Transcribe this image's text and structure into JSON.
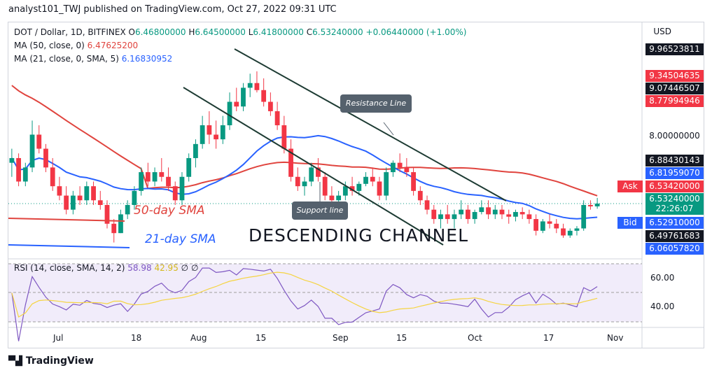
{
  "header": "analyst101_TWJ published on TradingView.com, Oct 27, 2022 09:31 UTC",
  "symbol_line": {
    "symbol": "DOT / Dollar, 1D, BITFINEX",
    "o_label": "O",
    "o": "6.46800000",
    "h_label": "H",
    "h": "6.64500000",
    "l_label": "L",
    "l": "6.41800000",
    "c_label": "C",
    "c": "6.53240000",
    "change": "+0.06440000 (+1.00%)"
  },
  "ma50": {
    "label": "MA (50, close, 0)",
    "value": "6.47625200"
  },
  "ma21": {
    "label": "MA (21, close, 0, SMA, 5)",
    "value": "6.16830952"
  },
  "rsi": {
    "label": "RSI (14, close, SMA, 14, 2)",
    "value1": "58.98",
    "value2": "42.95",
    "sym1": "∅",
    "sym2": "∅"
  },
  "currency": "USD",
  "price_labels": [
    {
      "text": "9.96523811",
      "bg": "#131722"
    },
    {
      "text": "9.34504635",
      "bg": "#f23645"
    },
    {
      "text": "9.07446507",
      "bg": "#131722"
    },
    {
      "text": "8.77994946",
      "bg": "#f23645"
    },
    {
      "text": "8.00000000",
      "bg": ""
    },
    {
      "text": "6.88430143",
      "bg": "#131722"
    },
    {
      "text": "6.81959070",
      "bg": "#2962ff"
    },
    {
      "text": "6.53420000",
      "bg": "#f23645"
    },
    {
      "text": "6.53240000",
      "bg": "#089981"
    },
    {
      "text": "22:26:07",
      "bg": "#089981"
    },
    {
      "text": "6.52910000",
      "bg": "#2962ff"
    },
    {
      "text": "6.49761683",
      "bg": "#131722"
    },
    {
      "text": "6.06057820",
      "bg": "#2962ff"
    }
  ],
  "ask_label": "Ask",
  "bid_label": "Bid",
  "rsi_axis": [
    "60.00",
    "40.00"
  ],
  "x_axis": [
    "Jul",
    "18",
    "Aug",
    "15",
    "Sep",
    "15",
    "Oct",
    "17",
    "Nov"
  ],
  "annotations": {
    "sma50": "50-day SMA",
    "sma21": "21-day SMA",
    "channel": "DESCENDING  CHANNEL",
    "resistance": "Resistance Line",
    "support": "Support line"
  },
  "colors": {
    "up": "#089981",
    "down": "#f23645",
    "ma50": "#e0443e",
    "ma21": "#2962ff",
    "rsi": "#7e57c2",
    "rsi_ma": "#f5d442"
  },
  "footer": "TradingView",
  "chart_data": {
    "type": "candlestick",
    "x": "daily, ~Jun 29 – Oct 27 2022",
    "candles_ohlc": [
      [
        7.4,
        7.7,
        7.1,
        7.5
      ],
      [
        7.5,
        7.6,
        6.9,
        7.0
      ],
      [
        7.0,
        7.4,
        6.9,
        7.3
      ],
      [
        7.3,
        8.3,
        7.2,
        8.0
      ],
      [
        8.0,
        8.2,
        7.6,
        7.7
      ],
      [
        7.7,
        7.8,
        7.2,
        7.3
      ],
      [
        7.3,
        7.5,
        6.8,
        6.9
      ],
      [
        6.9,
        7.1,
        6.6,
        6.7
      ],
      [
        6.7,
        6.9,
        6.3,
        6.4
      ],
      [
        6.4,
        6.8,
        6.3,
        6.7
      ],
      [
        6.7,
        6.9,
        6.5,
        6.6
      ],
      [
        6.6,
        7.0,
        6.5,
        6.9
      ],
      [
        6.9,
        7.0,
        6.5,
        6.6
      ],
      [
        6.6,
        6.8,
        6.4,
        6.5
      ],
      [
        6.5,
        6.6,
        6.0,
        6.1
      ],
      [
        6.1,
        6.2,
        5.7,
        5.9
      ],
      [
        5.9,
        6.4,
        5.9,
        6.3
      ],
      [
        6.3,
        6.6,
        6.2,
        6.5
      ],
      [
        6.5,
        6.9,
        6.4,
        6.8
      ],
      [
        6.8,
        7.3,
        6.7,
        7.2
      ],
      [
        7.2,
        7.4,
        6.9,
        7.0
      ],
      [
        7.0,
        7.3,
        6.9,
        7.2
      ],
      [
        7.2,
        7.5,
        7.0,
        7.1
      ],
      [
        7.1,
        7.3,
        6.8,
        6.9
      ],
      [
        6.9,
        7.0,
        6.5,
        6.6
      ],
      [
        6.6,
        7.2,
        6.5,
        7.1
      ],
      [
        7.1,
        7.6,
        7.0,
        7.5
      ],
      [
        7.5,
        7.9,
        7.3,
        7.8
      ],
      [
        7.8,
        8.4,
        7.7,
        8.2
      ],
      [
        8.2,
        8.5,
        7.8,
        8.0
      ],
      [
        8.0,
        8.3,
        7.7,
        7.9
      ],
      [
        7.9,
        8.4,
        7.8,
        8.2
      ],
      [
        8.2,
        8.9,
        8.1,
        8.7
      ],
      [
        8.7,
        9.0,
        8.5,
        8.6
      ],
      [
        8.6,
        9.1,
        8.5,
        9.0
      ],
      [
        9.0,
        9.3,
        8.8,
        9.1
      ],
      [
        9.1,
        9.35,
        8.9,
        8.95
      ],
      [
        8.95,
        9.2,
        8.6,
        8.7
      ],
      [
        8.7,
        8.9,
        8.4,
        8.5
      ],
      [
        8.5,
        8.7,
        8.1,
        8.2
      ],
      [
        8.2,
        8.4,
        7.6,
        7.7
      ],
      [
        7.7,
        7.9,
        7.0,
        7.1
      ],
      [
        7.1,
        7.3,
        6.8,
        6.9
      ],
      [
        6.9,
        7.1,
        6.7,
        7.0
      ],
      [
        7.0,
        7.4,
        6.9,
        7.3
      ],
      [
        7.3,
        7.5,
        7.0,
        7.1
      ],
      [
        7.1,
        7.2,
        6.6,
        6.7
      ],
      [
        6.7,
        6.9,
        6.5,
        6.6
      ],
      [
        6.6,
        6.8,
        6.4,
        6.7
      ],
      [
        6.7,
        7.0,
        6.6,
        6.9
      ],
      [
        6.9,
        7.1,
        6.7,
        6.8
      ],
      [
        6.8,
        7.0,
        6.7,
        6.95
      ],
      [
        6.95,
        7.2,
        6.9,
        7.1
      ],
      [
        7.1,
        7.3,
        6.9,
        7.0
      ],
      [
        7.0,
        7.1,
        6.6,
        6.7
      ],
      [
        6.7,
        7.3,
        6.6,
        7.2
      ],
      [
        7.2,
        7.45,
        7.1,
        7.4
      ],
      [
        7.4,
        7.6,
        7.2,
        7.3
      ],
      [
        7.3,
        7.5,
        7.1,
        7.2
      ],
      [
        7.2,
        7.3,
        6.7,
        6.8
      ],
      [
        6.8,
        6.9,
        6.5,
        6.6
      ],
      [
        6.6,
        6.7,
        6.3,
        6.4
      ],
      [
        6.4,
        6.5,
        6.1,
        6.2
      ],
      [
        6.2,
        6.4,
        6.0,
        6.3
      ],
      [
        6.3,
        6.5,
        6.1,
        6.2
      ],
      [
        6.2,
        6.4,
        6.0,
        6.3
      ],
      [
        6.3,
        6.6,
        6.2,
        6.4
      ],
      [
        6.4,
        6.5,
        6.1,
        6.2
      ],
      [
        6.2,
        6.4,
        6.1,
        6.35
      ],
      [
        6.35,
        6.6,
        6.3,
        6.45
      ],
      [
        6.45,
        6.6,
        6.2,
        6.3
      ],
      [
        6.3,
        6.5,
        6.2,
        6.4
      ],
      [
        6.4,
        6.5,
        6.2,
        6.3
      ],
      [
        6.3,
        6.4,
        6.1,
        6.25
      ],
      [
        6.25,
        6.4,
        6.15,
        6.35
      ],
      [
        6.35,
        6.45,
        6.2,
        6.3
      ],
      [
        6.3,
        6.4,
        6.1,
        6.2
      ],
      [
        6.2,
        6.3,
        5.85,
        5.95
      ],
      [
        5.95,
        6.2,
        5.9,
        6.15
      ],
      [
        6.15,
        6.3,
        6.0,
        6.1
      ],
      [
        6.1,
        6.2,
        5.9,
        6.0
      ],
      [
        6.0,
        6.1,
        5.8,
        5.85
      ],
      [
        5.85,
        6.0,
        5.8,
        5.95
      ],
      [
        5.95,
        6.05,
        5.85,
        6.0
      ],
      [
        6.0,
        6.6,
        5.95,
        6.5
      ],
      [
        6.5,
        6.6,
        6.4,
        6.47
      ],
      [
        6.47,
        6.65,
        6.42,
        6.53
      ]
    ],
    "ylim": [
      5.5,
      10.2
    ],
    "rsi_range": [
      20,
      80
    ]
  }
}
